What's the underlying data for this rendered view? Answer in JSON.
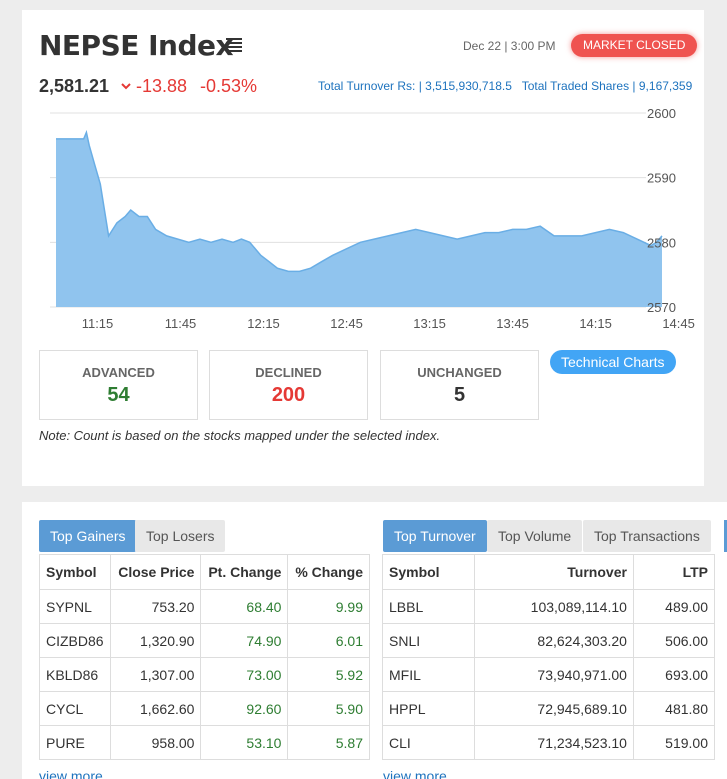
{
  "header": {
    "title": "NEPSE Index",
    "datetime": "Dec 22 | 3:00 PM",
    "market_status": "MARKET CLOSED",
    "index_value": "2,581.21",
    "point_change": "-13.88",
    "percent_change": "-0.53%",
    "turnover_text": "Total Turnover Rs: | 3,515,930,718.5",
    "traded_shares_text": "Total Traded Shares | 9,167,359"
  },
  "colors": {
    "accent_blue": "#42a5f5",
    "down_red": "#e53935",
    "up_green": "#2e7d32",
    "area_fill": "#90c4ee",
    "badge_red": "#ef5350"
  },
  "chart_data": {
    "type": "area",
    "y_ticks": [
      "2600",
      "2590",
      "2580",
      "2570"
    ],
    "x_ticks": [
      "11:15",
      "11:45",
      "12:15",
      "12:45",
      "13:15",
      "13:45",
      "14:15",
      "14:45"
    ],
    "ylim": [
      2570,
      2600
    ],
    "grid": true,
    "x_unit": "minutes since 11:00",
    "points": [
      [
        0,
        2596
      ],
      [
        10,
        2596
      ],
      [
        11,
        2597
      ],
      [
        12,
        2595
      ],
      [
        14,
        2592
      ],
      [
        16,
        2589
      ],
      [
        19,
        2581
      ],
      [
        22,
        2583
      ],
      [
        25,
        2584
      ],
      [
        27,
        2585
      ],
      [
        30,
        2584
      ],
      [
        33,
        2584
      ],
      [
        36,
        2582
      ],
      [
        40,
        2581
      ],
      [
        44,
        2580.5
      ],
      [
        48,
        2580
      ],
      [
        52,
        2580.5
      ],
      [
        56,
        2580
      ],
      [
        60,
        2580.5
      ],
      [
        64,
        2580
      ],
      [
        67,
        2580.5
      ],
      [
        70,
        2580
      ],
      [
        74,
        2578
      ],
      [
        77,
        2577
      ],
      [
        80,
        2576
      ],
      [
        84,
        2575.5
      ],
      [
        88,
        2575.5
      ],
      [
        92,
        2576
      ],
      [
        96,
        2577
      ],
      [
        100,
        2578
      ],
      [
        105,
        2579
      ],
      [
        110,
        2580
      ],
      [
        115,
        2580.5
      ],
      [
        120,
        2581
      ],
      [
        125,
        2581.5
      ],
      [
        130,
        2582
      ],
      [
        135,
        2581.5
      ],
      [
        140,
        2581
      ],
      [
        145,
        2580.5
      ],
      [
        150,
        2581
      ],
      [
        155,
        2581.5
      ],
      [
        160,
        2581.5
      ],
      [
        165,
        2582
      ],
      [
        170,
        2582
      ],
      [
        175,
        2582.5
      ],
      [
        180,
        2581
      ],
      [
        185,
        2581
      ],
      [
        190,
        2581
      ],
      [
        195,
        2581.5
      ],
      [
        200,
        2582
      ],
      [
        205,
        2581.5
      ],
      [
        210,
        2580.5
      ],
      [
        215,
        2579.5
      ],
      [
        217,
        2580
      ],
      [
        219,
        2581
      ]
    ]
  },
  "stats": {
    "advanced_label": "ADVANCED",
    "advanced_value": "54",
    "declined_label": "DECLINED",
    "declined_value": "200",
    "unchanged_label": "UNCHANGED",
    "unchanged_value": "5"
  },
  "technical_charts_label": "Technical Charts",
  "note": "Note: Count is based on the stocks mapped under the selected index.",
  "left_panel": {
    "tabs": [
      "Top Gainers",
      "Top Losers"
    ],
    "columns": [
      "Symbol",
      "Close Price",
      "Pt. Change",
      "% Change"
    ],
    "rows": [
      [
        "SYPNL",
        "753.20",
        "68.40",
        "9.99"
      ],
      [
        "CIZBD86",
        "1,320.90",
        "74.90",
        "6.01"
      ],
      [
        "KBLD86",
        "1,307.00",
        "73.00",
        "5.92"
      ],
      [
        "CYCL",
        "1,662.60",
        "92.60",
        "5.90"
      ],
      [
        "PURE",
        "958.00",
        "53.10",
        "5.87"
      ]
    ],
    "view_more": "view more"
  },
  "right_panel": {
    "tabs": [
      "Top Turnover",
      "Top Volume",
      "Top Transactions"
    ],
    "columns": [
      "Symbol",
      "Turnover",
      "LTP"
    ],
    "rows": [
      [
        "LBBL",
        "103,089,114.10",
        "489.00"
      ],
      [
        "SNLI",
        "82,624,303.20",
        "506.00"
      ],
      [
        "MFIL",
        "73,940,971.00",
        "693.00"
      ],
      [
        "HPPL",
        "72,945,689.10",
        "481.80"
      ],
      [
        "CLI",
        "71,234,523.10",
        "519.00"
      ]
    ],
    "view_more": "view more"
  }
}
